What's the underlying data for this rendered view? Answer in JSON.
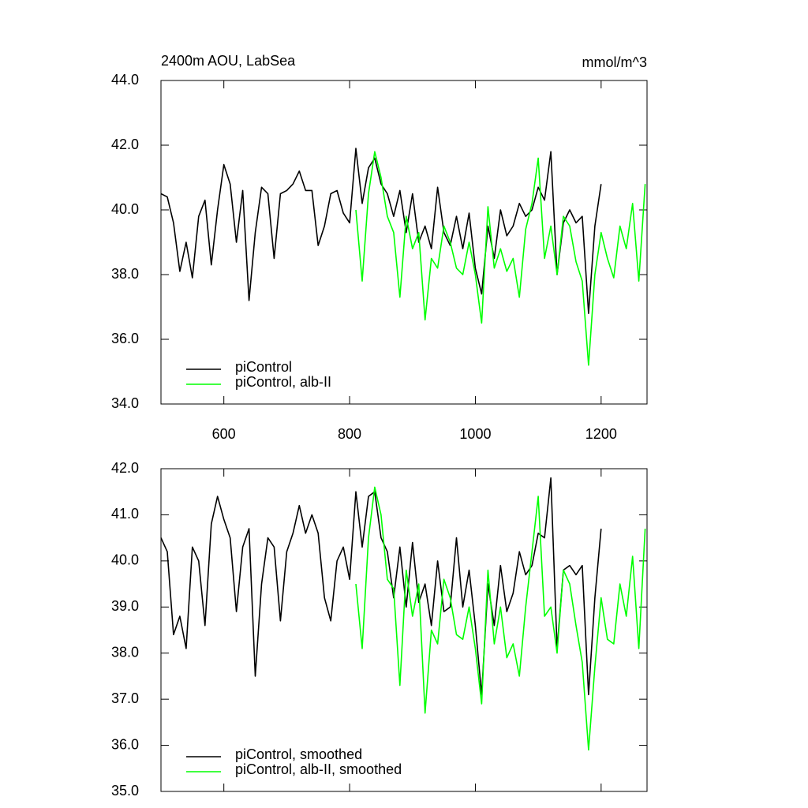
{
  "chart_data": [
    {
      "type": "line",
      "title": "2400m AOU, LabSea",
      "units": "mmol/m^3",
      "xlim": [
        500,
        1273
      ],
      "xticks": [
        600,
        800,
        1000,
        1200
      ],
      "ylim": [
        34,
        44
      ],
      "yticks": [
        {
          "value": 34,
          "label": "34.0"
        },
        {
          "value": 36,
          "label": "36.0"
        },
        {
          "value": 38,
          "label": "38.0"
        },
        {
          "value": 40,
          "label": "40.0"
        },
        {
          "value": 42,
          "label": "42.0"
        },
        {
          "value": 44,
          "label": "44.0"
        }
      ],
      "legend": "lower left",
      "series": [
        {
          "name": "piControl",
          "color": "#000000",
          "x": [
            500,
            510,
            520,
            530,
            540,
            550,
            560,
            570,
            580,
            590,
            600,
            610,
            620,
            630,
            640,
            650,
            660,
            670,
            680,
            690,
            700,
            710,
            720,
            730,
            740,
            750,
            760,
            770,
            780,
            790,
            800,
            810,
            820,
            830,
            840,
            850,
            860,
            870,
            880,
            890,
            900,
            910,
            920,
            930,
            940,
            950,
            960,
            970,
            980,
            990,
            1000,
            1010,
            1020,
            1030,
            1040,
            1050,
            1060,
            1070,
            1080,
            1090,
            1100,
            1110,
            1120,
            1130,
            1140,
            1150,
            1160,
            1170,
            1180,
            1190,
            1200
          ],
          "values": [
            40.5,
            40.4,
            39.6,
            38.1,
            39.0,
            37.9,
            39.8,
            40.3,
            38.3,
            40.0,
            41.4,
            40.8,
            39.0,
            40.6,
            37.2,
            39.3,
            40.7,
            40.5,
            38.5,
            40.5,
            40.6,
            40.8,
            41.2,
            40.6,
            40.6,
            38.9,
            39.5,
            40.5,
            40.6,
            39.9,
            39.6,
            41.9,
            40.2,
            41.3,
            41.6,
            40.8,
            40.5,
            39.8,
            40.6,
            39.3,
            40.5,
            39.0,
            39.5,
            38.8,
            40.7,
            39.3,
            38.9,
            39.8,
            38.8,
            39.9,
            38.2,
            37.4,
            39.5,
            38.5,
            40.0,
            39.2,
            39.5,
            40.2,
            39.8,
            40.0,
            40.7,
            40.3,
            41.8,
            38.0,
            39.6,
            40.0,
            39.6,
            39.8,
            36.8,
            39.5,
            40.8
          ]
        },
        {
          "name": "piControl, alb-II",
          "color": "#00ff00",
          "x": [
            810,
            820,
            830,
            840,
            850,
            860,
            870,
            880,
            890,
            900,
            910,
            920,
            930,
            940,
            950,
            960,
            970,
            980,
            990,
            1000,
            1010,
            1020,
            1030,
            1040,
            1050,
            1060,
            1070,
            1080,
            1090,
            1100,
            1110,
            1120,
            1130,
            1140,
            1150,
            1160,
            1170,
            1180,
            1190,
            1200,
            1210,
            1220,
            1230,
            1240,
            1250,
            1260,
            1270
          ],
          "values": [
            40.0,
            37.8,
            40.5,
            41.8,
            41.0,
            39.8,
            39.3,
            37.3,
            39.8,
            38.8,
            39.3,
            36.6,
            38.5,
            38.2,
            39.5,
            39.0,
            38.2,
            38.0,
            39.0,
            38.0,
            36.5,
            40.1,
            38.2,
            38.8,
            38.1,
            38.5,
            37.3,
            39.4,
            40.2,
            41.6,
            38.5,
            39.5,
            38.0,
            39.8,
            39.5,
            38.4,
            37.8,
            35.2,
            38.0,
            39.3,
            38.5,
            37.9,
            39.5,
            38.8,
            40.2,
            37.8,
            40.8
          ]
        }
      ]
    },
    {
      "type": "line",
      "xlim": [
        500,
        1273
      ],
      "xticks": [
        600,
        800,
        1000,
        1200
      ],
      "ylim": [
        35,
        42
      ],
      "yticks": [
        {
          "value": 35,
          "label": "35.0"
        },
        {
          "value": 36,
          "label": "36.0"
        },
        {
          "value": 37,
          "label": "37.0"
        },
        {
          "value": 38,
          "label": "38.0"
        },
        {
          "value": 39,
          "label": "39.0"
        },
        {
          "value": 40,
          "label": "40.0"
        },
        {
          "value": 41,
          "label": "41.0"
        },
        {
          "value": 42,
          "label": "42.0"
        }
      ],
      "legend": "lower left",
      "series": [
        {
          "name": "piControl, smoothed",
          "color": "#000000",
          "x": [
            500,
            510,
            520,
            530,
            540,
            550,
            560,
            570,
            580,
            590,
            600,
            610,
            620,
            630,
            640,
            650,
            660,
            670,
            680,
            690,
            700,
            710,
            720,
            730,
            740,
            750,
            760,
            770,
            780,
            790,
            800,
            810,
            820,
            830,
            840,
            850,
            860,
            870,
            880,
            890,
            900,
            910,
            920,
            930,
            940,
            950,
            960,
            970,
            980,
            990,
            1000,
            1010,
            1020,
            1030,
            1040,
            1050,
            1060,
            1070,
            1080,
            1090,
            1100,
            1110,
            1120,
            1130,
            1140,
            1150,
            1160,
            1170,
            1180,
            1190,
            1200
          ],
          "values": [
            40.5,
            40.2,
            38.4,
            38.8,
            38.1,
            40.3,
            40.0,
            38.6,
            40.8,
            41.4,
            40.9,
            40.5,
            38.9,
            40.3,
            40.7,
            37.5,
            39.5,
            40.5,
            40.3,
            38.7,
            40.2,
            40.6,
            41.2,
            40.6,
            41.0,
            40.6,
            39.2,
            38.7,
            40.0,
            40.3,
            39.6,
            41.5,
            40.3,
            41.4,
            41.5,
            40.5,
            40.2,
            39.2,
            40.3,
            39.0,
            40.4,
            39.1,
            39.5,
            38.6,
            40.0,
            38.9,
            39.0,
            40.5,
            39.0,
            39.8,
            38.6,
            37.1,
            39.5,
            38.6,
            39.9,
            38.9,
            39.3,
            40.2,
            39.7,
            39.9,
            40.6,
            40.5,
            41.8,
            38.1,
            39.8,
            39.9,
            39.7,
            39.9,
            37.1,
            39.2,
            40.7
          ]
        },
        {
          "name": "piControl, alb-II, smoothed",
          "color": "#00ff00",
          "x": [
            810,
            820,
            830,
            840,
            850,
            860,
            870,
            880,
            890,
            900,
            910,
            920,
            930,
            940,
            950,
            960,
            970,
            980,
            990,
            1000,
            1010,
            1020,
            1030,
            1040,
            1050,
            1060,
            1070,
            1080,
            1090,
            1100,
            1110,
            1120,
            1130,
            1140,
            1150,
            1160,
            1170,
            1180,
            1190,
            1200,
            1210,
            1220,
            1230,
            1240,
            1250,
            1260,
            1270
          ],
          "values": [
            39.5,
            38.1,
            40.5,
            41.6,
            41.0,
            39.6,
            39.4,
            37.3,
            39.8,
            38.8,
            39.5,
            36.7,
            38.5,
            38.2,
            39.6,
            39.2,
            38.4,
            38.3,
            39.0,
            38.1,
            36.9,
            39.8,
            38.2,
            39.0,
            37.9,
            38.2,
            37.5,
            39.0,
            40.2,
            41.4,
            38.8,
            39.0,
            38.0,
            39.8,
            39.5,
            38.6,
            37.8,
            35.9,
            37.7,
            39.2,
            38.3,
            38.2,
            39.5,
            38.8,
            40.1,
            38.1,
            40.7
          ]
        }
      ]
    }
  ]
}
